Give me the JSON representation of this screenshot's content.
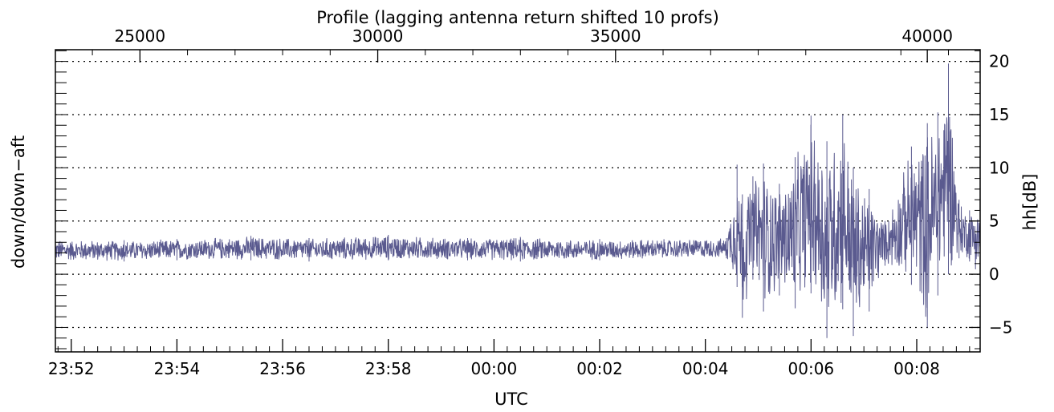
{
  "chart_data": {
    "type": "line",
    "title": "Profile (lagging antenna return shifted 10 profs)",
    "xlabel": "UTC",
    "ylabel_left": "down/down−aft",
    "ylabel_right": "hh[dB]",
    "x_unit": "minutes after 23:52 UTC",
    "xlim": [
      -0.3,
      17.2
    ],
    "ylim": [
      -7.3,
      21.1
    ],
    "bottom_ticks": [
      {
        "value": 0,
        "label": "23:52"
      },
      {
        "value": 2,
        "label": "23:54"
      },
      {
        "value": 4,
        "label": "23:56"
      },
      {
        "value": 6,
        "label": "23:58"
      },
      {
        "value": 8,
        "label": "00:00"
      },
      {
        "value": 10,
        "label": "00:02"
      },
      {
        "value": 12,
        "label": "00:04"
      },
      {
        "value": 14,
        "label": "00:06"
      },
      {
        "value": 16,
        "label": "00:08"
      }
    ],
    "top_ticks": [
      {
        "value": 1.3,
        "label": "25000"
      },
      {
        "value": 5.8,
        "label": "30000"
      },
      {
        "value": 10.3,
        "label": "35000"
      },
      {
        "value": 16.2,
        "label": "40000"
      }
    ],
    "right_ticks": [
      {
        "value": -5,
        "label": "−5"
      },
      {
        "value": 0,
        "label": "0"
      },
      {
        "value": 5,
        "label": "5"
      },
      {
        "value": 10,
        "label": "10"
      },
      {
        "value": 15,
        "label": "15"
      },
      {
        "value": 20,
        "label": "20"
      }
    ],
    "grid": "dotted horizontal at -5, 0, 5, 10, 15, 20",
    "series": [
      {
        "color": "#5a5a8f",
        "description": "noisy baseline ~2.3 dB until ~00:04:30, then large spikes",
        "envelope": [
          {
            "x": -0.3,
            "y_min": 1.2,
            "y_max": 3.3
          },
          {
            "x": 1.0,
            "y_min": 1.2,
            "y_max": 3.2
          },
          {
            "x": 2.0,
            "y_min": 1.3,
            "y_max": 3.3
          },
          {
            "x": 3.4,
            "y_min": 1.3,
            "y_max": 3.6
          },
          {
            "x": 4.5,
            "y_min": 1.2,
            "y_max": 3.4
          },
          {
            "x": 6.0,
            "y_min": 1.3,
            "y_max": 3.7
          },
          {
            "x": 7.5,
            "y_min": 1.3,
            "y_max": 3.4
          },
          {
            "x": 8.5,
            "y_min": 1.2,
            "y_max": 3.5
          },
          {
            "x": 10.0,
            "y_min": 1.3,
            "y_max": 3.3
          },
          {
            "x": 12.4,
            "y_min": 1.5,
            "y_max": 3.4
          },
          {
            "x": 12.6,
            "y_min": -1.2,
            "y_max": 10.3
          },
          {
            "x": 12.7,
            "y_min": -4.1,
            "y_max": 7.5
          },
          {
            "x": 12.9,
            "y_min": -0.5,
            "y_max": 9.2
          },
          {
            "x": 13.1,
            "y_min": -3.5,
            "y_max": 10.4
          },
          {
            "x": 13.4,
            "y_min": -2.0,
            "y_max": 8.5
          },
          {
            "x": 13.7,
            "y_min": -3.2,
            "y_max": 11.0
          },
          {
            "x": 14.0,
            "y_min": -1.8,
            "y_max": 14.9
          },
          {
            "x": 14.3,
            "y_min": -6.0,
            "y_max": 12.5
          },
          {
            "x": 14.6,
            "y_min": -3.3,
            "y_max": 15.0
          },
          {
            "x": 14.8,
            "y_min": -5.8,
            "y_max": 10.0
          },
          {
            "x": 15.1,
            "y_min": -3.5,
            "y_max": 8.0
          },
          {
            "x": 15.4,
            "y_min": 0.8,
            "y_max": 5.0
          },
          {
            "x": 15.9,
            "y_min": -1.0,
            "y_max": 12.0
          },
          {
            "x": 16.2,
            "y_min": -5.0,
            "y_max": 14.2
          },
          {
            "x": 16.4,
            "y_min": -2.0,
            "y_max": 15.2
          },
          {
            "x": 16.6,
            "y_min": 0.0,
            "y_max": 19.8
          },
          {
            "x": 16.8,
            "y_min": 1.5,
            "y_max": 7.0
          },
          {
            "x": 17.0,
            "y_min": 1.2,
            "y_max": 6.0
          },
          {
            "x": 17.2,
            "y_min": -0.3,
            "y_max": 7.3
          }
        ]
      }
    ]
  }
}
